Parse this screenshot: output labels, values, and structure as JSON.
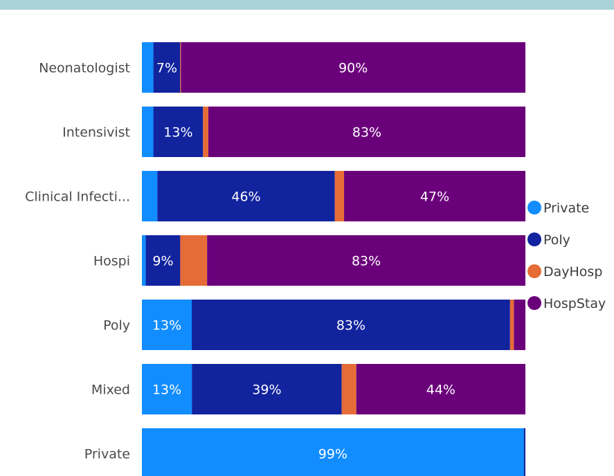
{
  "chart_data": {
    "type": "bar",
    "orientation": "horizontal",
    "stacked": "percent",
    "categories": [
      "Neonatologist",
      "Intensivist",
      "Clinical Infecti...",
      "Hospi",
      "Poly",
      "Mixed",
      "Private"
    ],
    "series": [
      {
        "name": "Private",
        "color": "#118dff",
        "values": [
          3,
          3,
          4,
          1,
          13,
          13,
          99
        ],
        "labels": [
          "",
          "",
          "",
          "",
          "13%",
          "13%",
          "99%"
        ]
      },
      {
        "name": "Poly",
        "color": "#12239e",
        "values": [
          7,
          13,
          46,
          9,
          83,
          39,
          0.4
        ],
        "labels": [
          "7%",
          "13%",
          "46%",
          "9%",
          "83%",
          "39%",
          ""
        ]
      },
      {
        "name": "DayHosp",
        "color": "#e66c37",
        "values": [
          0.2,
          1.4,
          2.4,
          7,
          1,
          3.8,
          0
        ],
        "labels": [
          "",
          "",
          "",
          "",
          "",
          "",
          ""
        ]
      },
      {
        "name": "HospStay",
        "color": "#6b007b",
        "values": [
          90,
          83,
          47,
          83,
          3,
          44,
          0
        ],
        "labels": [
          "90%",
          "83%",
          "47%",
          "83%",
          "",
          "44%",
          ""
        ]
      }
    ],
    "xlim": [
      0,
      100
    ],
    "grid": false,
    "legend_position": "right"
  }
}
